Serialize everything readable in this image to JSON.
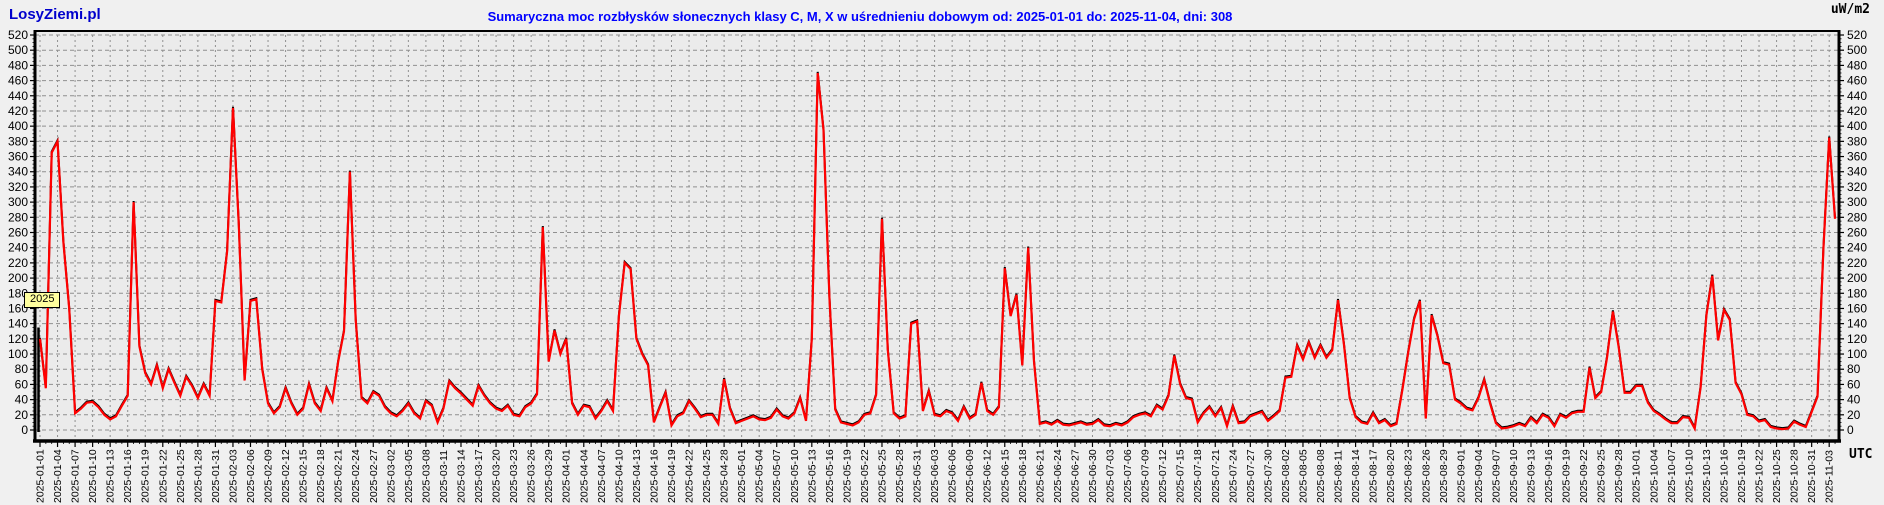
{
  "header": {
    "logo": "LosyZiemi.pl",
    "title": "Sumaryczna moc rozbłysków słonecznych klasy C, M, X w uśrednieniu dobowym od: 2025-01-01 do: 2025-11-04, dni: 308",
    "unit_label": "uW/m2"
  },
  "footer": {
    "timezone_label": "UTC"
  },
  "annotations": {
    "year_badge": "2025",
    "year_marker": {
      "day_index": 0,
      "top_value": 135
    }
  },
  "colors": {
    "line": "#ff0000",
    "line_shadow": "#000000",
    "title": "#0000ff",
    "logo": "#0000cc",
    "badge_bg": "#ffff9e",
    "grid": "#909090",
    "plot_bg": "#ebebeb",
    "page_bg": "#f0f0f0",
    "axis": "#000000"
  },
  "chart_data": {
    "type": "line",
    "title": "Sumaryczna moc rozbłysków słonecznych klasy C, M, X w uśrednieniu dobowym od: 2025-01-01 do: 2025-11-04, dni: 308",
    "xlabel": "UTC",
    "ylabel": "uW/m2",
    "ylim": [
      0,
      520
    ],
    "ytick_step": 20,
    "y_ticks": [
      0,
      20,
      40,
      60,
      80,
      100,
      120,
      140,
      160,
      180,
      200,
      220,
      240,
      260,
      280,
      300,
      320,
      340,
      360,
      380,
      400,
      420,
      440,
      460,
      480,
      500,
      520
    ],
    "grid": true,
    "legend_position": "none",
    "x_start_date": "2025-01-01",
    "x_end_date": "2025-11-04",
    "n_days": 308,
    "x_tick_every_days": 3,
    "x_tick_labels": [
      "2025-01-01",
      "2025-01-04",
      "2025-01-07",
      "2025-01-10",
      "2025-01-13",
      "2025-01-16",
      "2025-01-19",
      "2025-01-22",
      "2025-01-25",
      "2025-01-28",
      "2025-01-31",
      "2025-02-03",
      "2025-02-06",
      "2025-02-09",
      "2025-02-12",
      "2025-02-15",
      "2025-02-18",
      "2025-02-21",
      "2025-02-24",
      "2025-02-27",
      "2025-03-02",
      "2025-03-05",
      "2025-03-08",
      "2025-03-11",
      "2025-03-14",
      "2025-03-17",
      "2025-03-20",
      "2025-03-23",
      "2025-03-26",
      "2025-03-29",
      "2025-04-01",
      "2025-04-04",
      "2025-04-07",
      "2025-04-10",
      "2025-04-13",
      "2025-04-16",
      "2025-04-19",
      "2025-04-22",
      "2025-04-25",
      "2025-04-28",
      "2025-05-01",
      "2025-05-04",
      "2025-05-07",
      "2025-05-10",
      "2025-05-13",
      "2025-05-16",
      "2025-05-19",
      "2025-05-22",
      "2025-05-25",
      "2025-05-28",
      "2025-05-31",
      "2025-06-03",
      "2025-06-06",
      "2025-06-09",
      "2025-06-12",
      "2025-06-15",
      "2025-06-18",
      "2025-06-21",
      "2025-06-24",
      "2025-06-27",
      "2025-06-30",
      "2025-07-03",
      "2025-07-06",
      "2025-07-09",
      "2025-07-12",
      "2025-07-15",
      "2025-07-18",
      "2025-07-21",
      "2025-07-24",
      "2025-07-27",
      "2025-07-30",
      "2025-08-02",
      "2025-08-05",
      "2025-08-08",
      "2025-08-11",
      "2025-08-14",
      "2025-08-17",
      "2025-08-20",
      "2025-08-23",
      "2025-08-26",
      "2025-08-29",
      "2025-09-01",
      "2025-09-04",
      "2025-09-07",
      "2025-09-10",
      "2025-09-13",
      "2025-09-16",
      "2025-09-19",
      "2025-09-22",
      "2025-09-25",
      "2025-09-28",
      "2025-10-01",
      "2025-10-04",
      "2025-10-07",
      "2025-10-10",
      "2025-10-13",
      "2025-10-16",
      "2025-10-19",
      "2025-10-22",
      "2025-10-25",
      "2025-10-28",
      "2025-10-31",
      "2025-11-03"
    ],
    "series": [
      {
        "name": "moc rozbłysków C+M+X",
        "color": "#ff0000",
        "values": [
          120,
          55,
          365,
          380,
          247,
          160,
          22,
          28,
          36,
          37,
          30,
          20,
          14,
          18,
          32,
          45,
          300,
          110,
          75,
          60,
          85,
          55,
          80,
          62,
          45,
          70,
          58,
          42,
          60,
          45,
          170,
          168,
          235,
          424,
          270,
          65,
          170,
          172,
          80,
          35,
          22,
          30,
          55,
          35,
          20,
          28,
          60,
          35,
          25,
          55,
          38,
          90,
          130,
          340,
          145,
          42,
          35,
          50,
          45,
          30,
          22,
          18,
          25,
          35,
          22,
          15,
          38,
          32,
          10,
          28,
          64,
          55,
          48,
          40,
          32,
          58,
          45,
          35,
          28,
          25,
          32,
          20,
          18,
          30,
          35,
          47,
          267,
          90,
          131,
          100,
          120,
          35,
          20,
          32,
          30,
          15,
          25,
          38,
          25,
          150,
          220,
          212,
          120,
          100,
          85,
          10,
          30,
          49,
          6,
          18,
          22,
          38,
          28,
          17,
          20,
          20,
          8,
          67,
          28,
          9,
          12,
          15,
          18,
          14,
          13,
          16,
          27,
          18,
          15,
          22,
          42,
          12,
          120,
          470,
          395,
          175,
          27,
          10,
          8,
          6,
          10,
          20,
          22,
          46,
          278,
          105,
          22,
          15,
          18,
          140,
          143,
          25,
          51,
          20,
          18,
          25,
          22,
          12,
          30,
          15,
          20,
          62,
          25,
          20,
          30,
          213,
          150,
          178,
          85,
          240,
          90,
          8,
          10,
          7,
          12,
          7,
          6,
          8,
          10,
          7,
          8,
          13,
          6,
          5,
          8,
          6,
          10,
          17,
          20,
          22,
          18,
          32,
          27,
          45,
          98,
          60,
          42,
          40,
          10,
          22,
          30,
          18,
          29,
          5,
          31,
          9,
          10,
          18,
          21,
          24,
          12,
          18,
          25,
          69,
          70,
          111,
          93,
          115,
          95,
          111,
          95,
          105,
          171,
          113,
          42,
          17,
          10,
          8,
          22,
          9,
          13,
          5,
          8,
          53,
          102,
          146,
          170,
          15,
          151,
          124,
          88,
          86,
          40,
          35,
          28,
          26,
          42,
          66,
          35,
          9,
          2,
          3,
          5,
          8,
          5,
          16,
          9,
          20,
          16,
          5,
          20,
          16,
          22,
          24,
          24,
          82,
          42,
          50,
          95,
          156,
          109,
          49,
          49,
          58,
          58,
          36,
          25,
          20,
          14,
          9,
          9,
          17,
          16,
          2,
          56,
          151,
          203,
          118,
          158,
          145,
          62,
          47,
          20,
          18,
          11,
          13,
          4,
          2,
          1,
          2,
          11,
          7,
          4,
          24,
          44,
          238,
          385,
          278
        ]
      }
    ]
  }
}
